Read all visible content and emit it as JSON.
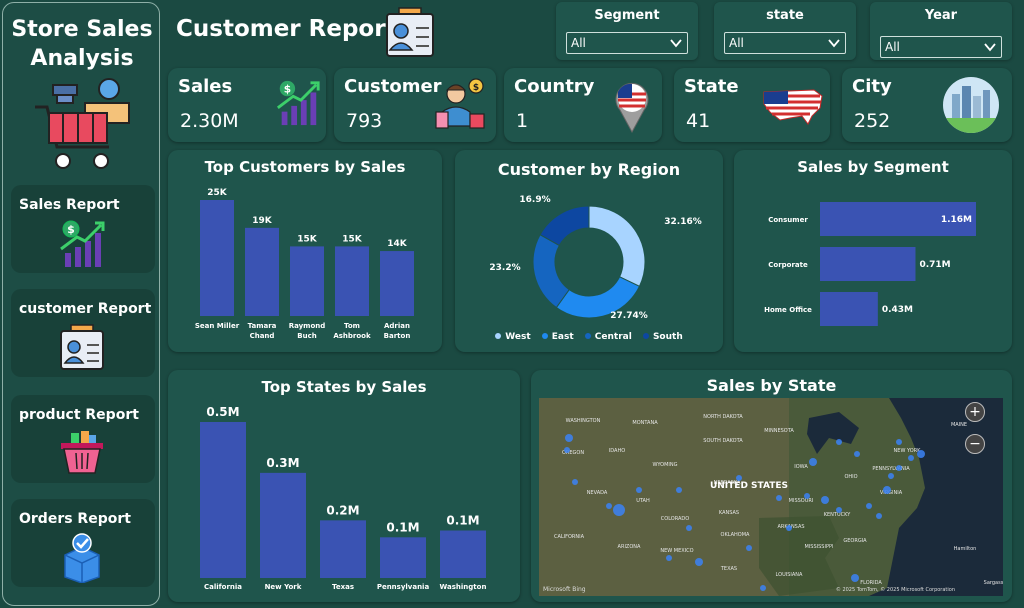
{
  "sidebar": {
    "title_line1": "Store Sales",
    "title_line2": "Analysis",
    "items": [
      {
        "label": "Sales Report"
      },
      {
        "label": "customer Report"
      },
      {
        "label": "product Report"
      },
      {
        "label": "Orders Report"
      }
    ]
  },
  "page_title": "Customer Report",
  "filters": [
    {
      "label": "Segment",
      "value": "All"
    },
    {
      "label": "state",
      "value": "All"
    },
    {
      "label": "Year",
      "value": "All"
    }
  ],
  "kpis": [
    {
      "label": "Sales",
      "value": "2.30M"
    },
    {
      "label": "Customer",
      "value": "793"
    },
    {
      "label": "Country",
      "value": "1"
    },
    {
      "label": "State",
      "value": "41"
    },
    {
      "label": "City",
      "value": "252"
    }
  ],
  "colors": {
    "background": "#1b4a42",
    "card": "#1f554c",
    "bar": "#3a53b3",
    "west": "#a8d4ff",
    "east": "#1f8af0",
    "central": "#1565c0",
    "south": "#0d47a1"
  },
  "chart_data": [
    {
      "type": "bar",
      "title": "Top Customers by Sales",
      "categories": [
        "Sean Miller",
        "Tamara Chand",
        "Raymond Buch",
        "Tom Ashbrook",
        "Adrian Barton"
      ],
      "category_lines": [
        [
          "Sean Miller"
        ],
        [
          "Tamara",
          "Chand"
        ],
        [
          "Raymond",
          "Buch"
        ],
        [
          "Tom",
          "Ashbrook"
        ],
        [
          "Adrian",
          "Barton"
        ]
      ],
      "values": [
        25000,
        19000,
        15000,
        15000,
        14000
      ],
      "data_labels": [
        "25K",
        "19K",
        "15K",
        "15K",
        "14K"
      ]
    },
    {
      "type": "pie",
      "title": "Customer by Region",
      "labels": [
        "West",
        "East",
        "Central",
        "South"
      ],
      "values": [
        32.16,
        27.74,
        23.2,
        16.9
      ],
      "data_labels": [
        "32.16%",
        "27.74%",
        "23.2%",
        "16.9%"
      ],
      "legend": "bottom"
    },
    {
      "type": "bar",
      "title": "Sales by Segment",
      "orientation": "horizontal",
      "categories": [
        "Consumer",
        "Corporate",
        "Home Office"
      ],
      "values": [
        1.16,
        0.71,
        0.43
      ],
      "data_labels": [
        "1.16M",
        "0.71M",
        "0.43M"
      ]
    },
    {
      "type": "bar",
      "title": "Top States by Sales",
      "categories": [
        "California",
        "New York",
        "Texas",
        "Pennsylvania",
        "Washington"
      ],
      "values": [
        0.46,
        0.31,
        0.17,
        0.12,
        0.14
      ],
      "data_labels": [
        "0.5M",
        "0.3M",
        "0.2M",
        "0.1M",
        "0.1M"
      ]
    }
  ],
  "map": {
    "title": "Sales by State",
    "center_label": "UNITED STATES",
    "place_labels": [
      "WASHINGTON",
      "MONTANA",
      "NORTH DAKOTA",
      "MINNESOTA",
      "OREGON",
      "IDAHO",
      "SOUTH DAKOTA",
      "WYOMING",
      "IOWA",
      "NEBRASKA",
      "NEVADA",
      "UTAH",
      "COLORADO",
      "KANSAS",
      "MISSOURI",
      "CALIFORNIA",
      "ARIZONA",
      "NEW MEXICO",
      "OKLAHOMA",
      "ARKANSAS",
      "TEXAS",
      "MISSISSIPPI",
      "GEORGIA",
      "LOUISIANA",
      "FLORIDA",
      "KENTUCKY",
      "VIRGINIA",
      "OHIO",
      "PENNSYLVANIA",
      "NEW YORK",
      "MAINE",
      "Hamilton",
      "Sargasso"
    ],
    "zoom_in": "+",
    "zoom_out": "−",
    "attribution": "© 2025 TomTom, © 2025 Microsoft Corporation",
    "brand": "Microsoft Bing"
  }
}
